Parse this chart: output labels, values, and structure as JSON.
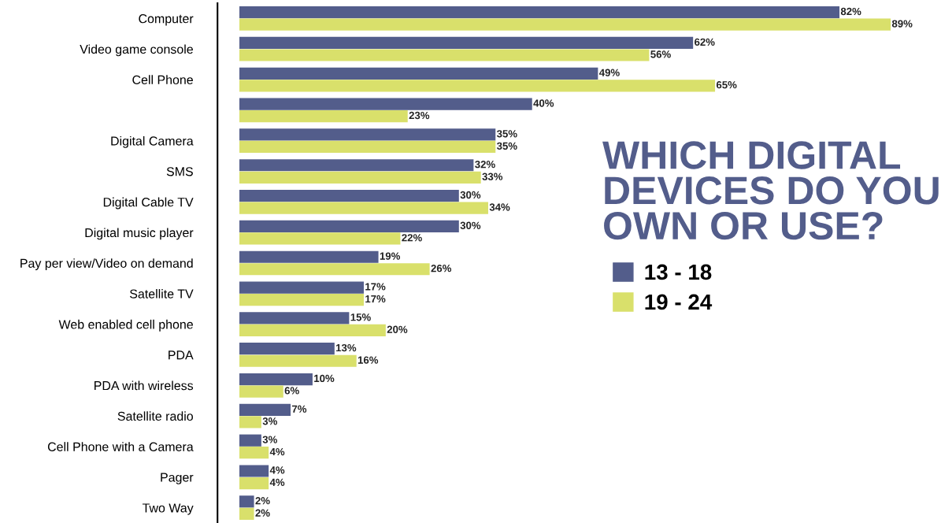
{
  "chart_data": {
    "type": "bar",
    "orientation": "horizontal",
    "title": "WHICH DIGITAL\nDEVICES DO YOU\nOWN OR USE?",
    "categories": [
      "Computer",
      "Video game console",
      "Cell Phone",
      null,
      "Digital Camera",
      "SMS",
      "Digital Cable TV",
      "Digital music player",
      "Pay per view/Video on demand",
      "Satellite TV",
      "Web enabled cell phone",
      "PDA",
      "PDA with wireless",
      "Satellite radio",
      "Cell Phone with a Camera",
      "Pager",
      "Two Way"
    ],
    "series": [
      {
        "name": "13 - 18",
        "color": "#535d8b",
        "values": [
          82,
          62,
          49,
          40,
          35,
          32,
          30,
          30,
          19,
          17,
          15,
          13,
          10,
          7,
          3,
          4,
          2
        ],
        "value_labels": [
          "82%",
          "62%",
          "49%",
          "40%",
          "35%",
          "32%",
          "30%",
          "30%",
          "19%",
          "17%",
          "15%",
          "13%",
          "10%",
          "7%",
          "3%",
          "4%",
          "2%"
        ]
      },
      {
        "name": "19 - 24",
        "color": "#d9e06b",
        "values": [
          89,
          56,
          65,
          23,
          35,
          33,
          34,
          22,
          26,
          17,
          20,
          16,
          6,
          3,
          4,
          4,
          2
        ],
        "value_labels": [
          "89%",
          "56%",
          "65%",
          "23%",
          "35%",
          "33%",
          "34%",
          "22%",
          "26%",
          "17%",
          "20%",
          "16%",
          "6%",
          "3%",
          "4%",
          "4%",
          "2%"
        ]
      }
    ],
    "legend": "right",
    "grid": false
  }
}
